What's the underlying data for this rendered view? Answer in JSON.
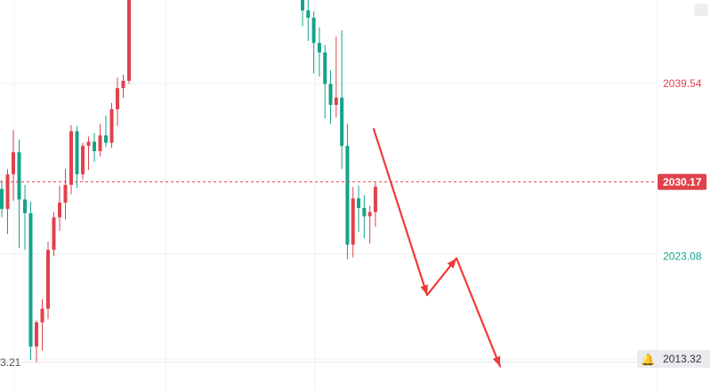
{
  "chart_data": {
    "type": "candlestick",
    "price_axis_labels": [
      {
        "label": "2039.54",
        "value": 2039.54,
        "color": "#e0424c",
        "kind": "level"
      },
      {
        "label": "2030.17",
        "value": 2030.17,
        "color": "#ffffff",
        "kind": "current-price"
      },
      {
        "label": "2023.08",
        "value": 2023.08,
        "color": "#14a38b",
        "kind": "level"
      },
      {
        "label": "2013.32",
        "value": 2013.32,
        "color": "#333333",
        "kind": "alert-level"
      }
    ],
    "left_partial_label": "3.21",
    "current_price": 2030.17,
    "colors": {
      "up": "#e0424c",
      "down": "#14a38b",
      "arrow": "#f03a3a",
      "gridline": "#eef0f3",
      "price_line": "#e0424c",
      "current_badge_bg": "#e0424c"
    },
    "candles": [
      {
        "o": 2029.5,
        "h": 2030.3,
        "l": 2026.8,
        "c": 2027.6
      },
      {
        "o": 2027.6,
        "h": 2031.4,
        "l": 2025.2,
        "c": 2030.9
      },
      {
        "o": 2030.9,
        "h": 2035.1,
        "l": 2028.4,
        "c": 2033.0
      },
      {
        "o": 2033.0,
        "h": 2034.2,
        "l": 2023.9,
        "c": 2028.5
      },
      {
        "o": 2028.5,
        "h": 2029.9,
        "l": 2023.7,
        "c": 2027.2
      },
      {
        "o": 2027.2,
        "h": 2028.3,
        "l": 2013.2,
        "c": 2014.5
      },
      {
        "o": 2014.5,
        "h": 2017.0,
        "l": 2013.0,
        "c": 2016.8
      },
      {
        "o": 2016.8,
        "h": 2019.0,
        "l": 2014.1,
        "c": 2018.1
      },
      {
        "o": 2018.1,
        "h": 2024.5,
        "l": 2017.1,
        "c": 2023.7
      },
      {
        "o": 2023.7,
        "h": 2027.3,
        "l": 2023.1,
        "c": 2026.8
      },
      {
        "o": 2026.8,
        "h": 2029.8,
        "l": 2025.5,
        "c": 2028.2
      },
      {
        "o": 2028.2,
        "h": 2031.4,
        "l": 2026.6,
        "c": 2029.9
      },
      {
        "o": 2029.9,
        "h": 2035.6,
        "l": 2029.0,
        "c": 2035.0
      },
      {
        "o": 2035.0,
        "h": 2035.5,
        "l": 2029.6,
        "c": 2030.9
      },
      {
        "o": 2030.9,
        "h": 2033.9,
        "l": 2030.4,
        "c": 2033.6
      },
      {
        "o": 2033.6,
        "h": 2034.5,
        "l": 2031.3,
        "c": 2034.0
      },
      {
        "o": 2034.0,
        "h": 2034.8,
        "l": 2032.1,
        "c": 2033.1
      },
      {
        "o": 2033.1,
        "h": 2035.7,
        "l": 2032.6,
        "c": 2034.6
      },
      {
        "o": 2034.6,
        "h": 2036.5,
        "l": 2033.5,
        "c": 2033.9
      },
      {
        "o": 2033.9,
        "h": 2037.7,
        "l": 2033.4,
        "c": 2037.1
      },
      {
        "o": 2037.1,
        "h": 2040.1,
        "l": 2035.5,
        "c": 2039.1
      },
      {
        "o": 2039.1,
        "h": 2040.4,
        "l": 2038.2,
        "c": 2039.8
      },
      {
        "o": 2039.8,
        "h": 2050.3,
        "l": 2039.5,
        "c": 2049.2
      },
      {
        "o": 2049.2,
        "h": 2054.2,
        "l": 2047.7,
        "c": 2052.7
      },
      {
        "o": 2052.7,
        "h": 2054.6,
        "l": 2049.3,
        "c": 2053.3
      }
    ],
    "candles_right": [
      {
        "o": 2056.0,
        "h": 2056.5,
        "l": 2045.0,
        "c": 2046.5
      },
      {
        "o": 2046.5,
        "h": 2047.8,
        "l": 2043.6,
        "c": 2045.8
      },
      {
        "o": 2045.8,
        "h": 2046.4,
        "l": 2040.5,
        "c": 2043.4
      },
      {
        "o": 2043.4,
        "h": 2044.9,
        "l": 2040.2,
        "c": 2042.5
      },
      {
        "o": 2042.5,
        "h": 2043.2,
        "l": 2036.2,
        "c": 2039.5
      },
      {
        "o": 2039.5,
        "h": 2040.8,
        "l": 2035.7,
        "c": 2037.5
      },
      {
        "o": 2037.5,
        "h": 2044.0,
        "l": 2036.3,
        "c": 2038.2
      },
      {
        "o": 2038.2,
        "h": 2044.6,
        "l": 2031.4,
        "c": 2033.6
      },
      {
        "o": 2033.6,
        "h": 2035.7,
        "l": 2022.8,
        "c": 2024.2
      },
      {
        "o": 2024.2,
        "h": 2029.7,
        "l": 2023.0,
        "c": 2028.6
      },
      {
        "o": 2028.6,
        "h": 2029.8,
        "l": 2025.4,
        "c": 2027.7
      },
      {
        "o": 2027.7,
        "h": 2028.9,
        "l": 2024.8,
        "c": 2026.9
      },
      {
        "o": 2026.9,
        "h": 2027.9,
        "l": 2024.3,
        "c": 2027.3
      },
      {
        "o": 2027.3,
        "h": 2030.1,
        "l": 2025.9,
        "c": 2029.7
      }
    ],
    "projection_arrow": [
      {
        "x_step": 0,
        "y": 2035.2
      },
      {
        "x_step": 1,
        "y": 2019.4
      },
      {
        "x_step": 2,
        "y": 2022.9
      },
      {
        "x_step": 3,
        "y": 2012.6
      }
    ]
  }
}
